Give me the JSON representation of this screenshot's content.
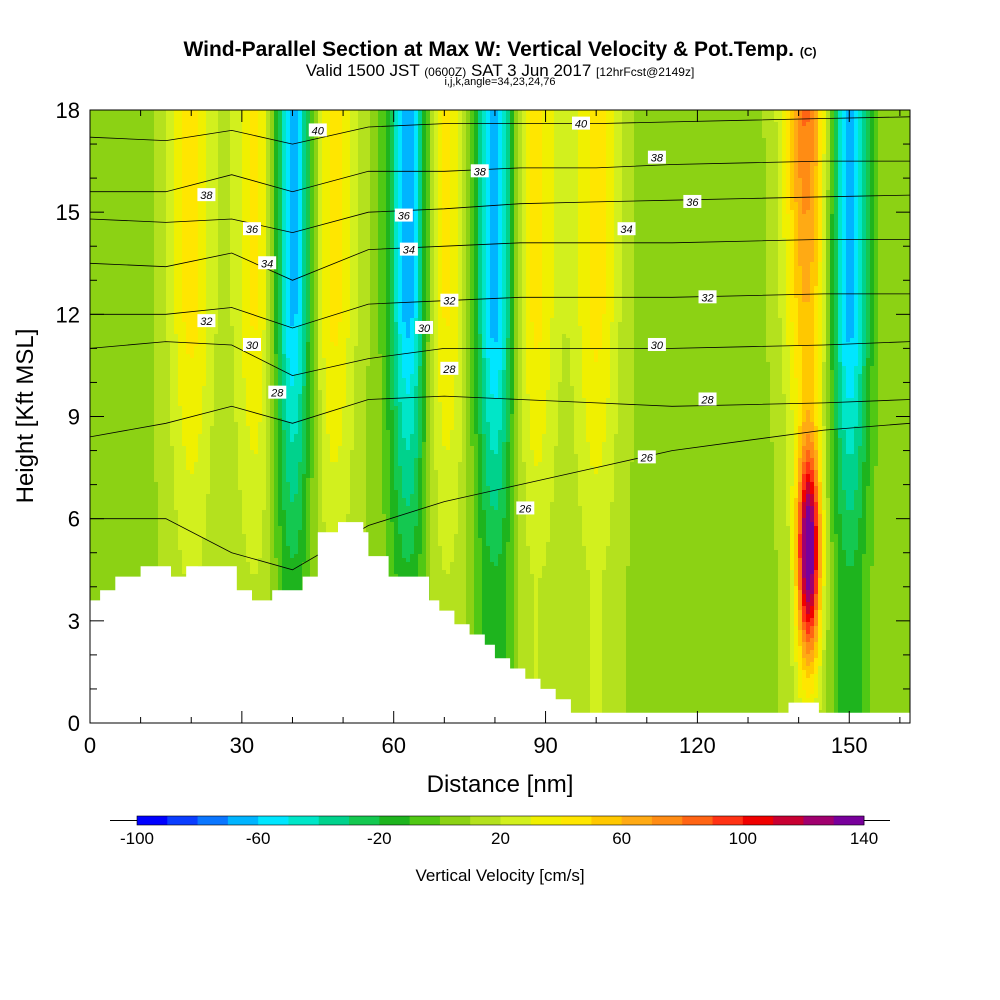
{
  "title": {
    "main": "Wind-Parallel Section at Max W: Vertical Velocity & Pot.Temp.",
    "main_suffix": "(C)",
    "valid_prefix": "Valid 1500 JST",
    "valid_zulu": "(0600Z)",
    "valid_date": "SAT 3 Jun 2017",
    "valid_suffix": "[12hrFcst@2149z]",
    "indices": "i,j,k,angle=34,23,24,76"
  },
  "chart_data": {
    "type": "heatmap",
    "xlabel": "Distance [nm]",
    "ylabel": "Height [Kft MSL]",
    "xlim": [
      0,
      162
    ],
    "ylim": [
      0,
      18
    ],
    "x_ticks": [
      0,
      30,
      60,
      90,
      120,
      150
    ],
    "y_ticks": [
      0,
      3,
      6,
      9,
      12,
      15,
      18
    ],
    "colorbar": {
      "title": "Vertical Velocity [cm/s]",
      "range": [
        -100,
        140
      ],
      "step": 10,
      "tick_labels": [
        -100,
        -60,
        -20,
        20,
        60,
        100,
        140
      ],
      "colors": [
        "#0000ff",
        "#0a3dff",
        "#0a76ff",
        "#00b4ff",
        "#00e6ff",
        "#00e6c8",
        "#00d28c",
        "#14c850",
        "#1eb41e",
        "#50c814",
        "#8cd214",
        "#b4e11e",
        "#d2f01e",
        "#f0f000",
        "#ffe600",
        "#ffc800",
        "#ffaa14",
        "#ff8c14",
        "#ff6414",
        "#ff3214",
        "#f00000",
        "#c80032",
        "#a0006e",
        "#78009b"
      ]
    },
    "updraft_cores_nm": [
      20,
      33,
      48,
      70,
      88,
      100,
      142
    ],
    "downdraft_cores_nm": [
      40,
      63,
      80,
      150
    ],
    "max_vertical_velocity_location": {
      "x": 142,
      "y": 5
    },
    "terrain_profile": {
      "x": [
        0,
        2,
        2,
        5,
        5,
        10,
        10,
        16,
        16,
        19,
        19,
        29,
        29,
        32,
        32,
        36,
        36,
        42,
        42,
        45,
        45,
        49,
        49,
        54,
        54,
        55,
        55,
        59,
        59,
        67,
        67,
        69,
        69,
        72,
        72,
        75,
        75,
        78,
        78,
        80,
        80,
        83,
        83,
        86,
        86,
        89,
        89,
        92,
        92,
        95,
        95,
        138,
        138,
        144,
        144,
        162
      ],
      "y": [
        3.6,
        3.6,
        3.9,
        3.9,
        4.3,
        4.3,
        4.6,
        4.6,
        4.3,
        4.3,
        4.6,
        4.6,
        3.9,
        3.9,
        3.6,
        3.6,
        3.9,
        3.9,
        4.3,
        4.3,
        5.6,
        5.6,
        5.9,
        5.9,
        5.6,
        5.6,
        4.9,
        4.9,
        4.3,
        4.3,
        3.6,
        3.6,
        3.3,
        3.3,
        2.9,
        2.9,
        2.6,
        2.6,
        2.3,
        2.3,
        1.9,
        1.9,
        1.6,
        1.6,
        1.3,
        1.3,
        1.0,
        1.0,
        0.7,
        0.7,
        0.3,
        0.3,
        0.6,
        0.6,
        0.3,
        0.3
      ]
    },
    "theta_contours": [
      {
        "value": 26,
        "y": [
          6,
          6,
          5,
          4.5,
          5.8,
          6.5,
          7,
          7.5,
          8,
          8.3,
          8.6,
          8.8
        ]
      },
      {
        "value": 28,
        "y": [
          8.4,
          8.8,
          9.3,
          8.8,
          9.5,
          9.6,
          9.5,
          9.4,
          9.3,
          9.35,
          9.4,
          9.5
        ]
      },
      {
        "value": 30,
        "y": [
          11,
          11.2,
          11.1,
          10.2,
          10.7,
          11,
          11,
          11,
          11,
          11.05,
          11.1,
          11.2
        ]
      },
      {
        "value": 32,
        "y": [
          12,
          12,
          12.2,
          11.6,
          12.3,
          12.4,
          12.5,
          12.5,
          12.5,
          12.55,
          12.6,
          12.6
        ]
      },
      {
        "value": 34,
        "y": [
          13.5,
          13.4,
          13.8,
          13,
          13.9,
          14,
          14.1,
          14.1,
          14.1,
          14.15,
          14.2,
          14.2
        ]
      },
      {
        "value": 36,
        "y": [
          14.8,
          14.7,
          14.8,
          14.4,
          15,
          15.1,
          15.25,
          15.3,
          15.35,
          15.4,
          15.45,
          15.5
        ]
      },
      {
        "value": 38,
        "y": [
          15.6,
          15.6,
          16.1,
          15.6,
          16.2,
          16.2,
          16.3,
          16.3,
          16.4,
          16.45,
          16.5,
          16.5
        ]
      },
      {
        "value": 40,
        "y": [
          17.2,
          17.1,
          17.4,
          17,
          17.5,
          17.6,
          17.6,
          17.6,
          17.65,
          17.7,
          17.75,
          17.8
        ]
      }
    ],
    "theta_contour_x": [
      0,
      15,
      28,
      40,
      55,
      70,
      85,
      100,
      115,
      130,
      145,
      162
    ],
    "contour_labels": [
      {
        "text": "40",
        "x": 45,
        "y": 17.4
      },
      {
        "text": "40",
        "x": 97,
        "y": 17.6
      },
      {
        "text": "38",
        "x": 23,
        "y": 15.5
      },
      {
        "text": "38",
        "x": 77,
        "y": 16.2
      },
      {
        "text": "38",
        "x": 112,
        "y": 16.6
      },
      {
        "text": "36",
        "x": 32,
        "y": 14.5
      },
      {
        "text": "36",
        "x": 62,
        "y": 14.9
      },
      {
        "text": "36",
        "x": 119,
        "y": 15.3
      },
      {
        "text": "34",
        "x": 35,
        "y": 13.5
      },
      {
        "text": "34",
        "x": 63,
        "y": 13.9
      },
      {
        "text": "34",
        "x": 106,
        "y": 14.5
      },
      {
        "text": "32",
        "x": 23,
        "y": 11.8
      },
      {
        "text": "32",
        "x": 71,
        "y": 12.4
      },
      {
        "text": "32",
        "x": 122,
        "y": 12.5
      },
      {
        "text": "30",
        "x": 32,
        "y": 11.1
      },
      {
        "text": "30",
        "x": 66,
        "y": 11.6
      },
      {
        "text": "30",
        "x": 112,
        "y": 11.1
      },
      {
        "text": "28",
        "x": 37,
        "y": 9.7
      },
      {
        "text": "28",
        "x": 71,
        "y": 10.4
      },
      {
        "text": "28",
        "x": 122,
        "y": 9.5
      },
      {
        "text": "26",
        "x": 86,
        "y": 6.3
      },
      {
        "text": "26",
        "x": 110,
        "y": 7.8
      }
    ]
  }
}
